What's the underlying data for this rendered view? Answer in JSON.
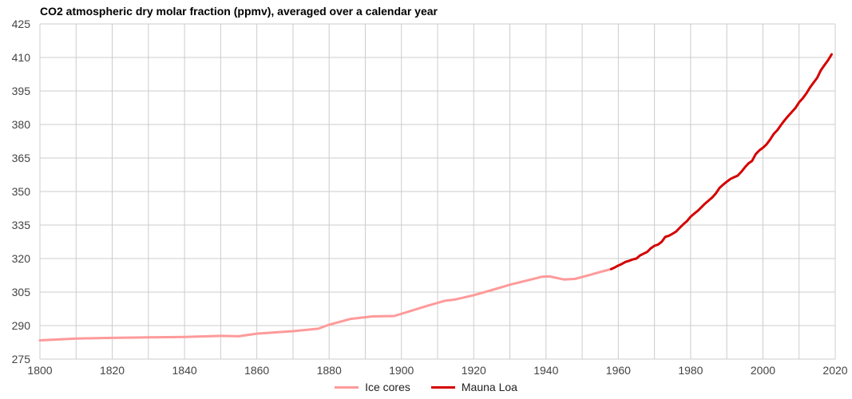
{
  "chart_data": {
    "type": "line",
    "title": "CO2 atmospheric dry molar fraction (ppmv), averaged over a calendar year",
    "xlabel": "",
    "ylabel": "",
    "xlim": [
      1800,
      2020
    ],
    "ylim": [
      275,
      425
    ],
    "grid": true,
    "legend_position": "bottom",
    "x_ticks": [
      1800,
      1820,
      1840,
      1860,
      1880,
      1900,
      1920,
      1940,
      1960,
      1980,
      2000,
      2020
    ],
    "y_ticks": [
      275,
      290,
      305,
      320,
      335,
      350,
      365,
      380,
      395,
      410,
      425
    ],
    "series": [
      {
        "name": "Ice cores",
        "color": "#ff9a9a",
        "x": [
          1800,
          1810,
          1820,
          1830,
          1840,
          1850,
          1855,
          1860,
          1870,
          1877,
          1880,
          1886,
          1892,
          1898,
          1902,
          1907,
          1912,
          1915,
          1920,
          1925,
          1930,
          1935,
          1939,
          1941,
          1945,
          1948,
          1952,
          1955,
          1958
        ],
        "y": [
          283.4,
          284.2,
          284.5,
          284.7,
          284.9,
          285.4,
          285.2,
          286.4,
          287.5,
          288.6,
          290.4,
          293.0,
          294.1,
          294.3,
          296.3,
          298.8,
          301.1,
          301.7,
          303.6,
          305.9,
          308.3,
          310.3,
          311.9,
          312.0,
          310.6,
          310.9,
          312.6,
          314.0,
          315.3
        ]
      },
      {
        "name": "Mauna Loa",
        "color": "#d40000",
        "x": [
          1958,
          1959,
          1960,
          1961,
          1962,
          1963,
          1964,
          1965,
          1966,
          1967,
          1968,
          1969,
          1970,
          1971,
          1972,
          1973,
          1974,
          1975,
          1976,
          1977,
          1978,
          1979,
          1980,
          1981,
          1982,
          1983,
          1984,
          1985,
          1986,
          1987,
          1988,
          1989,
          1990,
          1991,
          1992,
          1993,
          1994,
          1995,
          1996,
          1997,
          1998,
          1999,
          2000,
          2001,
          2002,
          2003,
          2004,
          2005,
          2006,
          2007,
          2008,
          2009,
          2010,
          2011,
          2012,
          2013,
          2014,
          2015,
          2016,
          2017,
          2018,
          2019
        ],
        "y": [
          315.3,
          316.0,
          316.9,
          317.6,
          318.5,
          319.0,
          319.6,
          320.0,
          321.4,
          322.2,
          323.0,
          324.6,
          325.7,
          326.3,
          327.5,
          329.7,
          330.2,
          331.1,
          332.1,
          333.8,
          335.4,
          336.8,
          338.7,
          340.1,
          341.4,
          343.0,
          344.6,
          346.0,
          347.4,
          349.2,
          351.6,
          353.1,
          354.4,
          355.6,
          356.4,
          357.1,
          358.8,
          360.8,
          362.6,
          363.7,
          366.7,
          368.4,
          369.6,
          371.1,
          373.3,
          375.8,
          377.5,
          379.8,
          381.9,
          383.8,
          385.6,
          387.4,
          389.9,
          391.7,
          393.9,
          396.5,
          398.7,
          400.9,
          404.2,
          406.5,
          408.7,
          411.4
        ]
      }
    ]
  },
  "legend": {
    "items": [
      {
        "label": "Ice cores",
        "color": "#ff9a9a"
      },
      {
        "label": "Mauna Loa",
        "color": "#d40000"
      }
    ]
  }
}
